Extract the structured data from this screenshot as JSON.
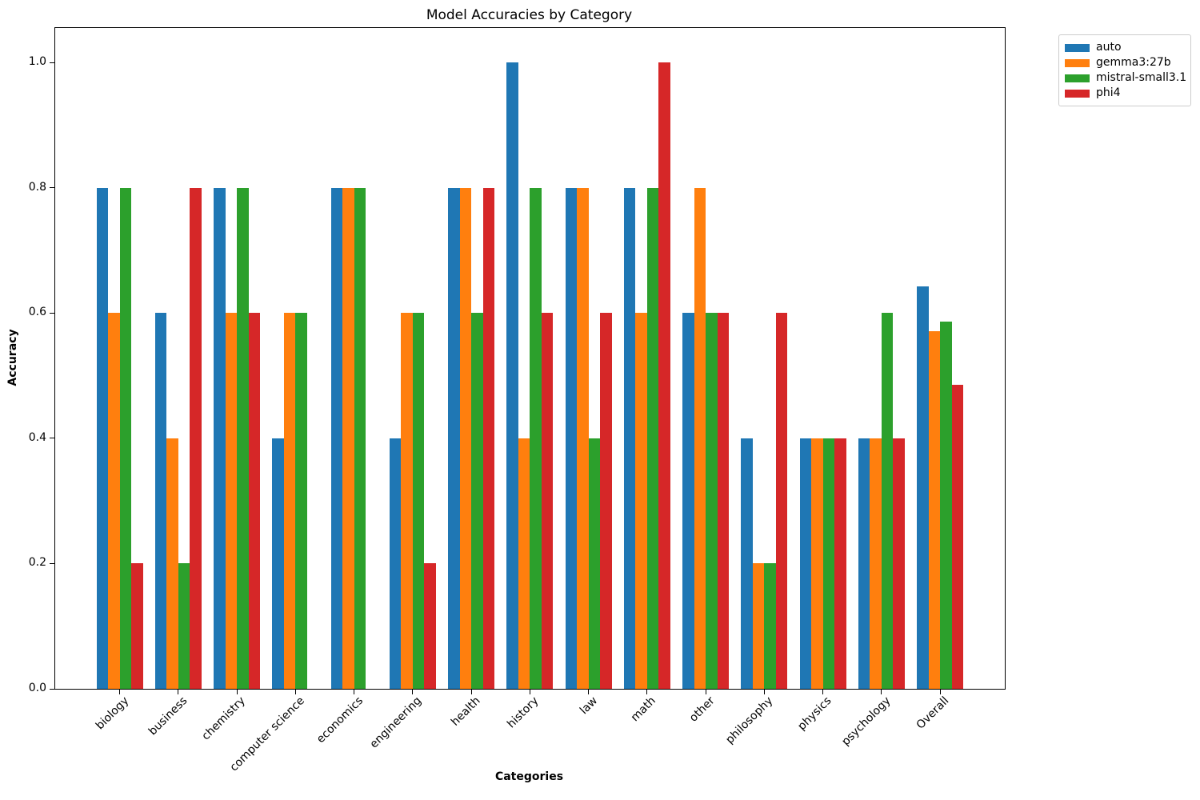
{
  "chart_data": {
    "type": "bar",
    "title": "Model Accuracies by Category",
    "xlabel": "Categories",
    "ylabel": "Accuracy",
    "ylim": [
      0,
      1.05
    ],
    "yticks": [
      "0.0",
      "0.2",
      "0.4",
      "0.6",
      "0.8",
      "1.0"
    ],
    "grid": false,
    "legend_position": "upper-right-outside-axes",
    "categories": [
      "biology",
      "business",
      "chemistry",
      "computer science",
      "economics",
      "engineering",
      "health",
      "history",
      "law",
      "math",
      "other",
      "philosophy",
      "physics",
      "psychology",
      "Overall"
    ],
    "series": [
      {
        "name": "auto",
        "color": "#1f77b4",
        "values": [
          0.8,
          0.6,
          0.8,
          0.4,
          0.8,
          0.4,
          0.8,
          1.0,
          0.8,
          0.8,
          0.6,
          0.4,
          0.4,
          0.4,
          0.6429
        ]
      },
      {
        "name": "gemma3:27b",
        "color": "#ff7f0e",
        "values": [
          0.6,
          0.4,
          0.6,
          0.6,
          0.8,
          0.6,
          0.8,
          0.4,
          0.8,
          0.6,
          0.8,
          0.2,
          0.4,
          0.4,
          0.5714
        ]
      },
      {
        "name": "mistral-small3.1",
        "color": "#2ca02c",
        "values": [
          0.8,
          0.2,
          0.8,
          0.6,
          0.8,
          0.6,
          0.6,
          0.8,
          0.4,
          0.8,
          0.6,
          0.2,
          0.4,
          0.6,
          0.5857
        ]
      },
      {
        "name": "phi4",
        "color": "#d62728",
        "values": [
          0.2,
          0.8,
          0.6,
          0.0,
          0.0,
          0.2,
          0.8,
          0.6,
          0.6,
          1.0,
          0.6,
          0.6,
          0.4,
          0.4,
          0.4857
        ]
      }
    ]
  }
}
